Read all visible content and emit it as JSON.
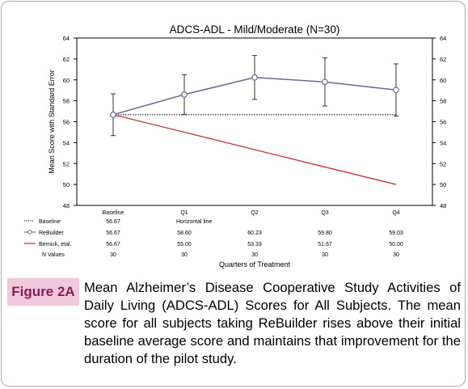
{
  "figure": {
    "label": "Figure 2A",
    "caption": "Mean Alzheimer’s Disease Cooperative Study Activities of Daily Living (ADCS-ADL) Scores for All Subjects.  The mean score for all subjects taking ReBuilder rises above their initial baseline average score and maintains that improvement for the duration of the pilot study."
  },
  "chart_data": {
    "type": "line",
    "title": "ADCS-ADL - Mild/Moderate (N=30)",
    "xlabel": "Quarters of Treatment",
    "ylabel": "Mean Score with Standard Error",
    "categories": [
      "Baseline",
      "Q1",
      "Q2",
      "Q3",
      "Q4"
    ],
    "ylim": [
      48,
      64
    ],
    "yticks": [
      "48",
      "50",
      "52",
      "54",
      "56",
      "58",
      "60",
      "62",
      "64"
    ],
    "y2ticks": [
      "48",
      "50",
      "52",
      "54",
      "56",
      "58",
      "60",
      "62",
      "64"
    ],
    "grid": false,
    "series": [
      {
        "name": "Baseline",
        "style": "dotted",
        "color": "#000000",
        "values": [
          56.67,
          56.67,
          56.67,
          56.67,
          56.67
        ],
        "table_values": [
          "56.67",
          "Horizontal line"
        ]
      },
      {
        "name": "ReBuilder",
        "style": "line-marker",
        "color": "#6b6890",
        "values": [
          56.67,
          58.6,
          60.23,
          59.8,
          59.03
        ],
        "error": [
          2.0,
          1.9,
          2.1,
          2.3,
          2.5
        ],
        "table_values": [
          "56.67",
          "58.60",
          "60.23",
          "59.80",
          "59.03"
        ]
      },
      {
        "name": "Bernick, etal.",
        "style": "solid",
        "color": "#c0232b",
        "values": [
          56.67,
          55.0,
          53.33,
          51.67,
          50.0
        ],
        "table_values": [
          "56.67",
          "55.00",
          "53.33",
          "51.67",
          "50.00"
        ]
      }
    ],
    "n_values": {
      "name": "N Values",
      "values": [
        "30",
        "30",
        "30",
        "30",
        "30"
      ]
    }
  }
}
